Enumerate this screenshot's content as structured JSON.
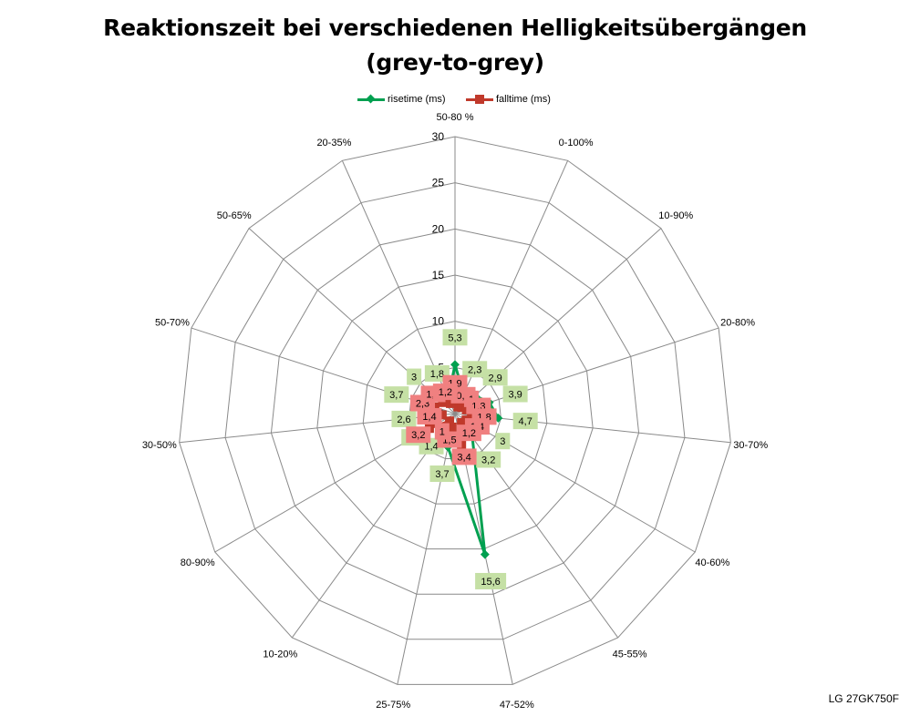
{
  "header": {
    "title_line1": "Reaktionszeit bei verschiedenen Helligkeitsübergängen",
    "title_line2": "(grey-to-grey)"
  },
  "footer": {
    "model_label": "LG 27GK750F"
  },
  "colors": {
    "rise": "#00a050",
    "fall": "#c0392b",
    "rise_label_bg": "#c5e0a5",
    "fall_label_bg": "#f08080",
    "grid": "#8a8a8a"
  },
  "chart_data": {
    "type": "radar",
    "title": "Reaktionszeit bei verschiedenen Helligkeitsübergängen (grey-to-grey)",
    "categories": [
      "50-80 %",
      "0-100%",
      "10-90%",
      "20-80%",
      "30-70%",
      "40-60%",
      "45-55%",
      "47-52%",
      "25-75%",
      "10-20%",
      "80-90%",
      "30-50%",
      "50-70%",
      "50-65%",
      "20-35%"
    ],
    "axis_ticks": [
      "0",
      "5",
      "10",
      "15",
      "20",
      "25",
      "30"
    ],
    "rlim": [
      0,
      30
    ],
    "grid": true,
    "legend_position": "top",
    "series": [
      {
        "name": "risetime (ms)",
        "values": [
          5.3,
          2.3,
          2.9,
          3.9,
          4.7,
          3,
          3.2,
          15.6,
          3.7,
          1.4,
          2.2,
          2.6,
          3.7,
          3,
          1.8
        ],
        "labels": [
          "5,3",
          "2,3",
          "2,9",
          "3,9",
          "4,7",
          "3",
          "3,2",
          "15,6",
          "3,7",
          "1,4",
          "2,2",
          "2,6",
          "3,7",
          "3",
          "1,8"
        ]
      },
      {
        "name": "falltime (ms)",
        "values": [
          1.9,
          0.8,
          1,
          1.3,
          1.8,
          1.4,
          1.2,
          3.4,
          1.5,
          1,
          3.2,
          1.4,
          2.3,
          1.8,
          1.2
        ],
        "labels": [
          "1,9",
          "0,8",
          "1",
          "1,3",
          "1,8",
          "1,4",
          "1,2",
          "3,4",
          "1,5",
          "1",
          "3,2",
          "1,4",
          "2,3",
          "1,8",
          "1,2"
        ]
      }
    ]
  }
}
